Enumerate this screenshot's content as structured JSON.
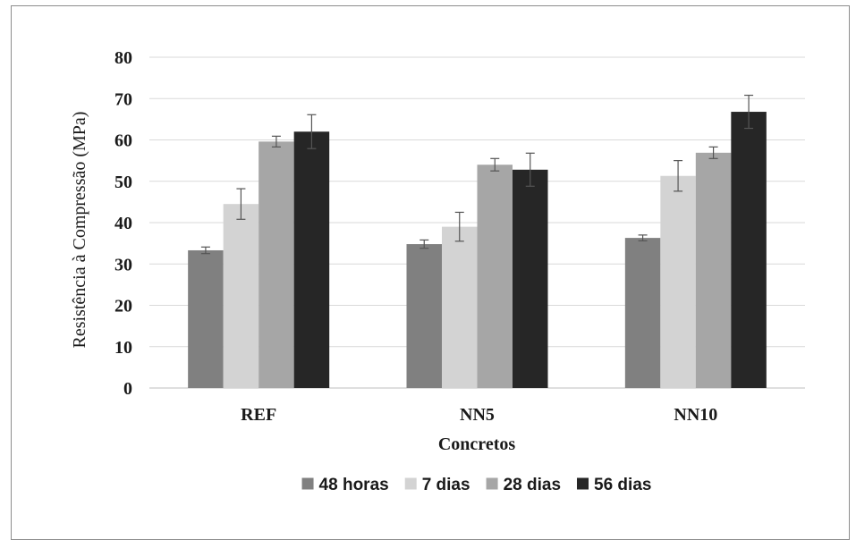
{
  "chart_data": {
    "type": "bar",
    "title": "",
    "xlabel": "Concretos",
    "ylabel": "Resistência à Compressão (MPa)",
    "ylim": [
      0,
      80
    ],
    "yticks": [
      "0",
      "10",
      "20",
      "30",
      "40",
      "50",
      "60",
      "70",
      "80"
    ],
    "categories": [
      "REF",
      "NN5",
      "NN10"
    ],
    "series": [
      {
        "name": "48 horas",
        "color": "#808080",
        "values": [
          33.3,
          34.8,
          36.3
        ],
        "errors": [
          0.8,
          1.0,
          0.7
        ]
      },
      {
        "name": "7 dias",
        "color": "#d3d3d3",
        "values": [
          44.5,
          39.0,
          51.3
        ],
        "errors": [
          3.7,
          3.5,
          3.7
        ]
      },
      {
        "name": "28 dias",
        "color": "#a6a6a6",
        "values": [
          59.6,
          54.0,
          56.9
        ],
        "errors": [
          1.3,
          1.5,
          1.4
        ]
      },
      {
        "name": "56 dias",
        "color": "#262626",
        "values": [
          62.0,
          52.8,
          66.8
        ],
        "errors": [
          4.1,
          4.0,
          4.0
        ]
      }
    ],
    "grid": true,
    "legend_position": "bottom"
  }
}
